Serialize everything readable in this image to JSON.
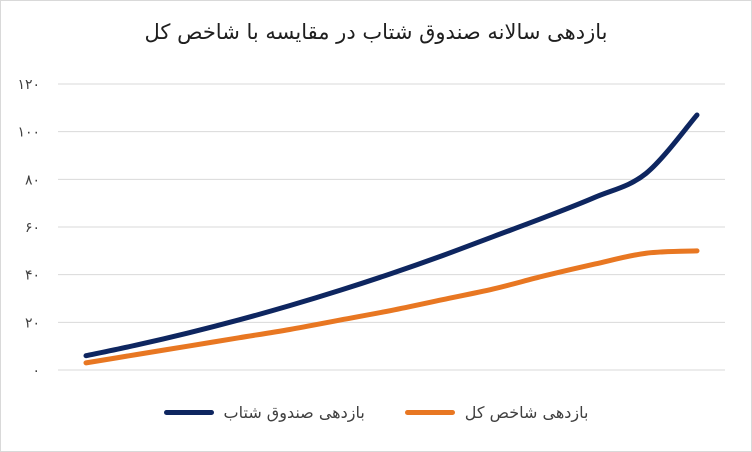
{
  "chart_data": {
    "type": "line",
    "title": "بازدهی سالانه صندوق شتاب در مقایسه با شاخص کل",
    "xlabel": "",
    "ylabel": "",
    "ylim": [
      0,
      120
    ],
    "yticks": [
      0,
      20,
      40,
      60,
      80,
      100,
      120
    ],
    "ytick_labels": [
      "۰",
      "۲۰",
      "۴۰",
      "۶۰",
      "۸۰",
      "۱۰۰",
      "۱۲۰"
    ],
    "grid": true,
    "legend_position": "bottom",
    "x": [
      0,
      1,
      2,
      3,
      4,
      5,
      6,
      7,
      8,
      9,
      10,
      11,
      12
    ],
    "series": [
      {
        "name": "بازدهی صندوق شتاب",
        "color": "#0e2660",
        "values": [
          6,
          10.5,
          15.5,
          21,
          27,
          33.5,
          40.5,
          48,
          56,
          64,
          72.5,
          82.5,
          107
        ]
      },
      {
        "name": "بازدهی شاخص کل",
        "color": "#e87722",
        "values": [
          3,
          6.5,
          10,
          13.5,
          17,
          21,
          25,
          29.5,
          34,
          39.5,
          44.5,
          49,
          50
        ]
      }
    ]
  }
}
